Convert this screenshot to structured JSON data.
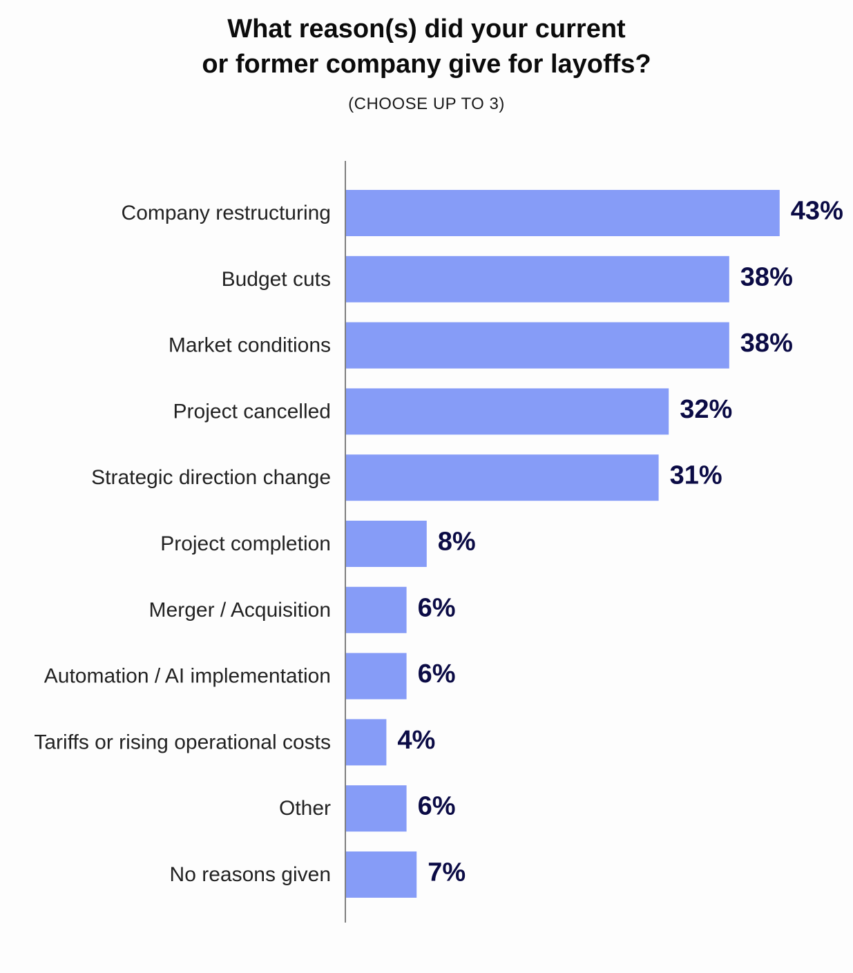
{
  "chart_data": {
    "type": "bar",
    "orientation": "horizontal",
    "title_lines": [
      "What reason(s) did your current",
      "or former company give for layoffs?"
    ],
    "subtitle": "(CHOOSE UP TO 3)",
    "categories": [
      "Company restructuring",
      "Budget cuts",
      "Market conditions",
      "Project cancelled",
      "Strategic direction change",
      "Project completion",
      "Merger / Acquisition",
      "Automation / AI implementation",
      "Tariffs or rising operational costs",
      "Other",
      "No reasons given"
    ],
    "values": [
      43,
      38,
      38,
      32,
      31,
      8,
      6,
      6,
      4,
      6,
      7
    ],
    "value_labels": [
      "43%",
      "38%",
      "38%",
      "32%",
      "31%",
      "8%",
      "6%",
      "6%",
      "4%",
      "6%",
      "7%"
    ],
    "unit": "%",
    "bar_color": "#869cf7",
    "value_label_color": "#0b0b45",
    "axis_color": "#555555",
    "grid": false,
    "legend": "none"
  }
}
